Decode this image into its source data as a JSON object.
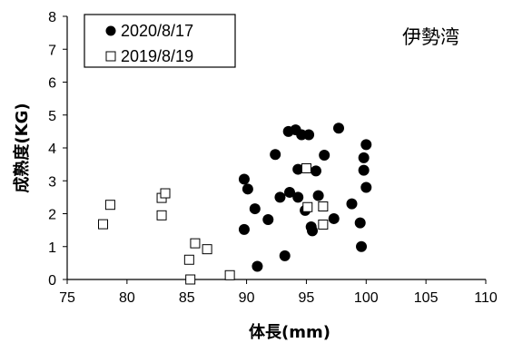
{
  "chart_data": {
    "type": "scatter",
    "annotation": "伊勢湾",
    "xlabel": "体長(mm)",
    "ylabel": "成熟度(KG)",
    "xlim": [
      75,
      110
    ],
    "ylim": [
      0,
      8
    ],
    "xticks": [
      75,
      80,
      85,
      90,
      95,
      100,
      105,
      110
    ],
    "yticks": [
      0,
      1,
      2,
      3,
      4,
      5,
      6,
      7,
      8
    ],
    "grid": false,
    "legend_position": "top-left",
    "series": [
      {
        "name": "2020/8/17",
        "marker": "filled-circle",
        "color": "#000000",
        "points": [
          [
            89.8,
            3.05
          ],
          [
            90.1,
            2.75
          ],
          [
            89.8,
            1.52
          ],
          [
            90.7,
            2.15
          ],
          [
            90.9,
            0.4
          ],
          [
            91.8,
            1.82
          ],
          [
            92.4,
            3.8
          ],
          [
            92.8,
            2.5
          ],
          [
            93.2,
            0.72
          ],
          [
            93.5,
            4.5
          ],
          [
            93.6,
            2.65
          ],
          [
            94.1,
            4.55
          ],
          [
            94.3,
            3.35
          ],
          [
            94.3,
            2.5
          ],
          [
            94.6,
            4.4
          ],
          [
            94.9,
            2.1
          ],
          [
            95.2,
            4.4
          ],
          [
            95.4,
            1.6
          ],
          [
            95.5,
            1.48
          ],
          [
            95.8,
            3.3
          ],
          [
            96.0,
            2.55
          ],
          [
            96.5,
            3.78
          ],
          [
            97.3,
            1.85
          ],
          [
            97.7,
            4.6
          ],
          [
            98.8,
            2.3
          ],
          [
            99.5,
            1.72
          ],
          [
            99.6,
            1.0
          ],
          [
            99.8,
            3.7
          ],
          [
            99.8,
            3.32
          ],
          [
            100.0,
            2.8
          ],
          [
            100.0,
            4.1
          ]
        ]
      },
      {
        "name": "2019/8/19",
        "marker": "open-square",
        "color": "#000000",
        "points": [
          [
            78.0,
            1.68
          ],
          [
            78.6,
            2.27
          ],
          [
            82.9,
            1.95
          ],
          [
            82.9,
            2.48
          ],
          [
            83.2,
            2.62
          ],
          [
            85.2,
            0.6
          ],
          [
            85.3,
            0.0
          ],
          [
            85.7,
            1.1
          ],
          [
            86.7,
            0.92
          ],
          [
            88.6,
            0.13
          ],
          [
            95.0,
            3.38
          ],
          [
            95.1,
            2.2
          ],
          [
            96.4,
            2.22
          ],
          [
            96.4,
            1.67
          ]
        ]
      }
    ]
  }
}
